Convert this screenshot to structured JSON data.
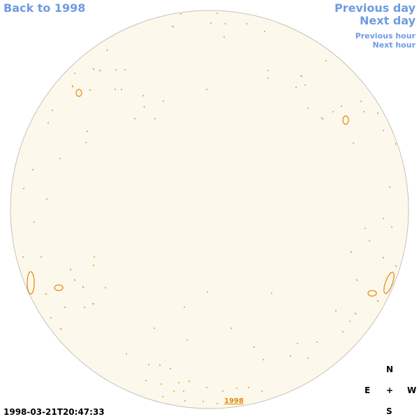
{
  "navigation": {
    "back": "Back to 1998",
    "previous_day": "Previous day",
    "next_day": "Next day",
    "previous_hour": "Previous hour",
    "next_hour": "Next hour"
  },
  "timestamp": "1998-03-21T20:47:33",
  "year_link": "1998",
  "compass": {
    "north": "N",
    "east": "E",
    "center": "+",
    "west": "W",
    "south": "S"
  }
}
